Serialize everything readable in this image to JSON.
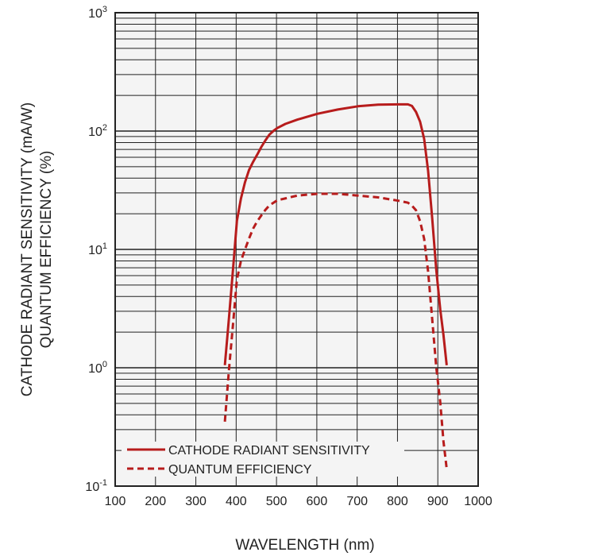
{
  "chart_data": {
    "type": "line",
    "title": "",
    "xlabel": "WAVELENGTH (nm)",
    "ylabel_lines": [
      "CATHODE RADIANT SENSITIVITY (mA/W)",
      "QUANTUM EFFICIENCY (%)"
    ],
    "xlim": [
      100,
      1000
    ],
    "x_ticks": [
      100,
      200,
      300,
      400,
      500,
      600,
      700,
      800,
      900,
      1000
    ],
    "ylim": [
      0.1,
      1000
    ],
    "y_scale": "log",
    "y_ticks": [
      {
        "value": 0.1,
        "base": "10",
        "exp": "-1"
      },
      {
        "value": 1,
        "base": "10",
        "exp": "0"
      },
      {
        "value": 10,
        "base": "10",
        "exp": "1"
      },
      {
        "value": 100,
        "base": "10",
        "exp": "2"
      },
      {
        "value": 1000,
        "base": "10",
        "exp": "3"
      }
    ],
    "grid": true,
    "legend_position": "bottom",
    "series": [
      {
        "name": "CATHODE RADIANT SENSITIVITY",
        "style": "solid",
        "color": "#b71c1c",
        "x": [
          372,
          382,
          392,
          402,
          412,
          422,
          432,
          442,
          452,
          462,
          472,
          482,
          492,
          502,
          522,
          552,
          602,
          652,
          702,
          752,
          802,
          826,
          836,
          846,
          856,
          866,
          876,
          886,
          896,
          906,
          914,
          922
        ],
        "y": [
          1.05,
          2.6,
          6.7,
          17.5,
          27,
          37,
          47,
          55,
          63,
          73,
          83,
          93,
          100,
          106,
          115,
          125,
          140,
          152,
          162,
          167,
          168,
          168,
          163,
          145,
          120,
          86,
          46,
          18.5,
          6.8,
          3.1,
          1.9,
          1.05
        ]
      },
      {
        "name": "QUANTUM EFFICIENCY",
        "style": "dashed",
        "color": "#b71c1c",
        "x": [
          372,
          382,
          392,
          402,
          412,
          422,
          432,
          442,
          452,
          462,
          472,
          482,
          502,
          552,
          602,
          652,
          702,
          752,
          802,
          826,
          836,
          846,
          856,
          866,
          876,
          886,
          896,
          906,
          914,
          922
        ],
        "y": [
          0.35,
          0.95,
          2.3,
          5.6,
          8,
          10,
          12.4,
          15,
          17.2,
          19.3,
          21.5,
          23.5,
          26,
          28.5,
          29.5,
          29.5,
          28.5,
          27.5,
          25.8,
          24.8,
          23.4,
          21.4,
          17.3,
          12.3,
          6.5,
          2.6,
          1.02,
          0.51,
          0.24,
          0.14
        ]
      }
    ]
  }
}
